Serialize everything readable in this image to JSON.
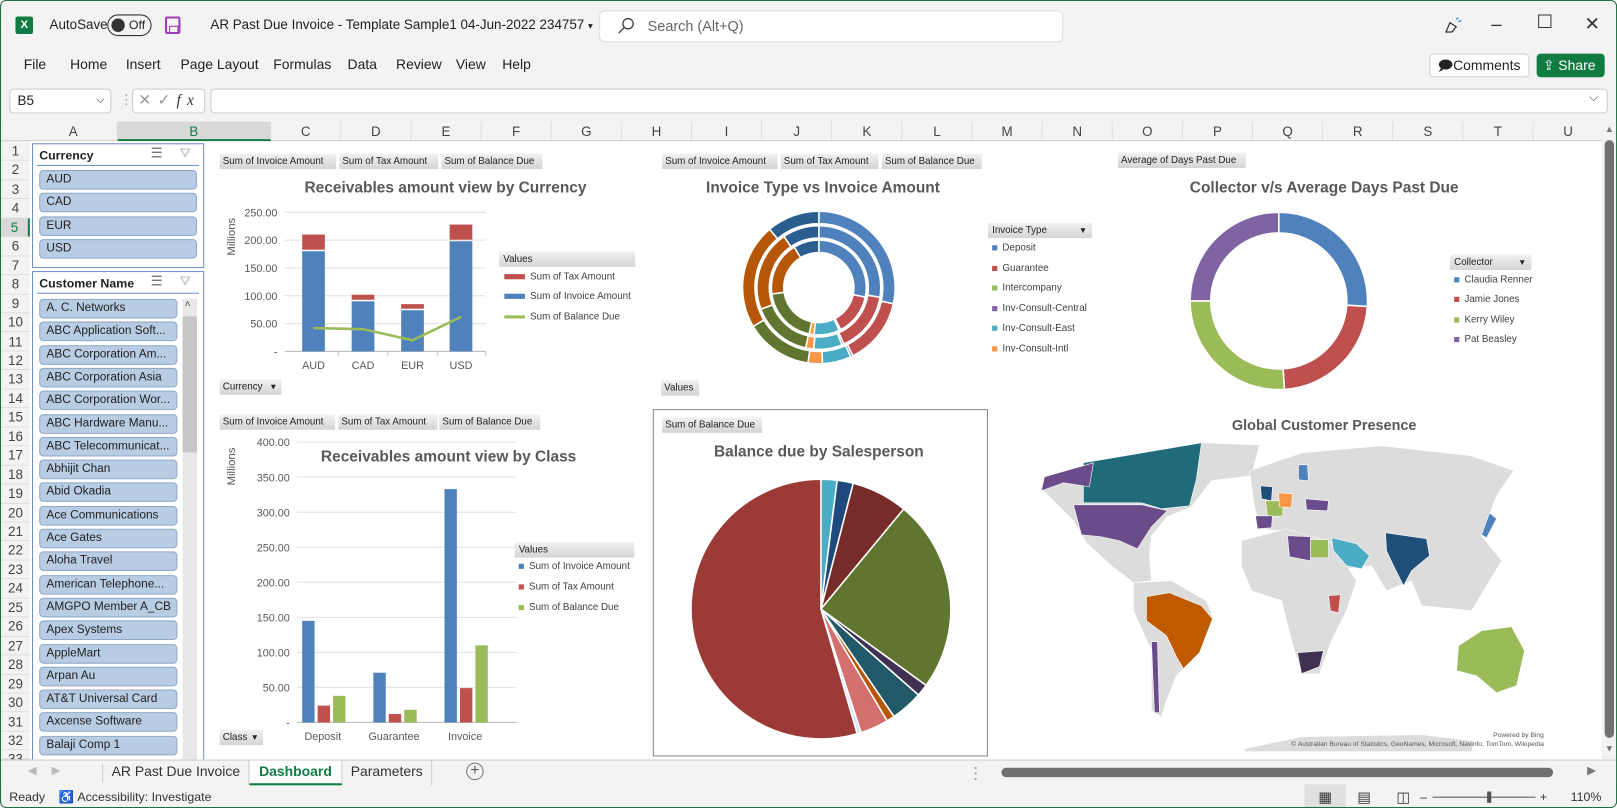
{
  "window": {
    "app_icon": "excel-icon",
    "autosave_label": "AutoSave",
    "autosave_state": "Off",
    "title": "AR Past Due Invoice - Template Sample1 04-Jun-2022 234757",
    "search_placeholder": "Search (Alt+Q)"
  },
  "menu": [
    "File",
    "Home",
    "Insert",
    "Page Layout",
    "Formulas",
    "Data",
    "Review",
    "View",
    "Help"
  ],
  "actions": {
    "comments": "Comments",
    "share": "Share"
  },
  "formula_bar": {
    "name_box": "B5",
    "formula": ""
  },
  "columns": [
    "A",
    "B",
    "C",
    "D",
    "E",
    "F",
    "G",
    "H",
    "I",
    "J",
    "K",
    "L",
    "M",
    "N",
    "O",
    "P",
    "Q",
    "R",
    "S",
    "T",
    "U"
  ],
  "rows": [
    "1",
    "2",
    "3",
    "4",
    "5",
    "6",
    "7",
    "8",
    "9",
    "10",
    "11",
    "12",
    "13",
    "14",
    "15",
    "16",
    "17",
    "18",
    "19",
    "20",
    "21",
    "22",
    "23",
    "24",
    "25",
    "26",
    "27",
    "28",
    "29",
    "30",
    "31",
    "32",
    "33"
  ],
  "selected_cell": "B5",
  "slicers": {
    "currency": {
      "title": "Currency",
      "items": [
        "AUD",
        "CAD",
        "EUR",
        "USD"
      ]
    },
    "customer": {
      "title": "Customer Name",
      "items": [
        "A. C. Networks",
        "ABC Application Soft...",
        "ABC Corporation Am...",
        "ABC Corporation Asia",
        "ABC Corporation Wor...",
        "ABC Hardware Manu...",
        "ABC Telecommunicat...",
        "Abhijit Chan",
        "Abid Okadia",
        "Ace Communications",
        "Ace Gates",
        "Aloha Travel",
        "American Telephone...",
        "AMGPO Member A_CB",
        "Apex Systems",
        "AppleMart",
        "Arpan Au",
        "AT&T Universal Card",
        "Axcense Software",
        "Balaji Comp 1"
      ]
    }
  },
  "chart_data": [
    {
      "type": "bar",
      "stacked": true,
      "title": "Receivables amount view by Currency",
      "field_buttons": [
        "Sum of Invoice Amount",
        "Sum of Tax Amount",
        "Sum of Balance Due"
      ],
      "axis_button": "Currency",
      "ylabel": "Millions",
      "ylim": [
        0,
        250
      ],
      "yticks": [
        {
          "value": 0,
          "label": "-"
        },
        {
          "value": 50,
          "label": "50.00"
        },
        {
          "value": 100,
          "label": "100.00"
        },
        {
          "value": 150,
          "label": "150.00"
        },
        {
          "value": 200,
          "label": "200.00"
        },
        {
          "value": 250,
          "label": "250.00"
        }
      ],
      "grid": true,
      "categories": [
        "AUD",
        "CAD",
        "EUR",
        "USD"
      ],
      "legend_title": "Values",
      "legend_position": "right",
      "series": [
        {
          "name": "Sum of Tax Amount",
          "kind": "bar",
          "color": "#c0504d",
          "values": [
            30,
            12,
            11,
            30
          ]
        },
        {
          "name": "Sum of Invoice Amount",
          "kind": "bar",
          "color": "#4f81bd",
          "values": [
            180,
            90,
            74,
            198
          ]
        },
        {
          "name": "Sum of Balance Due",
          "kind": "line",
          "color": "#9bbb59",
          "values": [
            42,
            40,
            20,
            62
          ]
        }
      ]
    },
    {
      "type": "bar",
      "title": "Receivables amount view by Class",
      "field_buttons": [
        "Sum of Invoice Amount",
        "Sum of Tax Amount",
        "Sum of Balance Due"
      ],
      "axis_button": "Class",
      "ylabel": "Millions",
      "ylim": [
        0,
        400
      ],
      "yticks": [
        {
          "value": 0,
          "label": "-"
        },
        {
          "value": 50,
          "label": "50.00"
        },
        {
          "value": 100,
          "label": "100.00"
        },
        {
          "value": 150,
          "label": "150.00"
        },
        {
          "value": 200,
          "label": "200.00"
        },
        {
          "value": 250,
          "label": "250.00"
        },
        {
          "value": 300,
          "label": "300.00"
        },
        {
          "value": 350,
          "label": "350.00"
        },
        {
          "value": 400,
          "label": "400.00"
        }
      ],
      "grid": true,
      "categories": [
        "Deposit",
        "Guarantee",
        "Invoice"
      ],
      "legend_title": "Values",
      "legend_position": "right",
      "series": [
        {
          "name": "Sum of Invoice Amount",
          "color": "#4f81bd",
          "values": [
            145,
            71,
            333
          ]
        },
        {
          "name": "Sum of Tax Amount",
          "color": "#c0504d",
          "values": [
            24,
            12,
            49
          ]
        },
        {
          "name": "Sum of Balance Due",
          "color": "#9bbb59",
          "values": [
            38,
            18,
            110
          ]
        }
      ]
    },
    {
      "type": "pie",
      "variant": "multi-ring-doughnut",
      "title": "Invoice Type vs Invoice Amount",
      "field_buttons": [
        "Sum of Invoice Amount",
        "Sum of Tax Amount",
        "Sum of Balance Due"
      ],
      "axis_button": "Values",
      "legend_title": "Invoice Type",
      "legend_position": "right",
      "legend": [
        {
          "name": "Deposit",
          "color": "#4f81bd"
        },
        {
          "name": "Guarantee",
          "color": "#c0504d"
        },
        {
          "name": "Intercompany",
          "color": "#9bbb59"
        },
        {
          "name": "Inv-Consult-Central",
          "color": "#8064a2"
        },
        {
          "name": "Inv-Consult-East",
          "color": "#4bacc6"
        },
        {
          "name": "Inv-Consult-Intl",
          "color": "#f79646"
        }
      ],
      "segment_colors": [
        "#4f81bd",
        "#c0504d",
        "#8064a2",
        "#4bacc6",
        "#f79646",
        "#5f7530",
        "#b65708",
        "#2c5d8f"
      ],
      "rings": [
        {
          "values": [
            26,
            13,
            0.5,
            8,
            1.5,
            18,
            17,
            8
          ]
        },
        {
          "values": [
            26,
            15,
            0.5,
            7,
            2,
            15,
            20,
            9
          ]
        },
        {
          "values": [
            28,
            14,
            0.5,
            6,
            3,
            14,
            22,
            11
          ]
        }
      ]
    },
    {
      "type": "pie",
      "variant": "doughnut",
      "title": "Collector v/s Average Days Past Due",
      "field_buttons": [
        "Average of Days Past Due"
      ],
      "legend_title": "Collector",
      "legend_position": "right",
      "categories": [
        "Claudia Renner",
        "Jamie Jones",
        "Kerry Wiley",
        "Pat Beasley"
      ],
      "colors": [
        "#4f81bd",
        "#c0504d",
        "#9bbb59",
        "#8064a2"
      ],
      "values": [
        26,
        23,
        26,
        25
      ]
    },
    {
      "type": "pie",
      "title": "Balance due by Salesperson",
      "field_buttons": [
        "Sum of Balance Due"
      ],
      "colors": [
        "#4bacc6",
        "#1f497d",
        "#772c2a",
        "#5f7530",
        "#403152",
        "#215968",
        "#b65708",
        "#d46f6f",
        "#dce6f2",
        "#9c3a38"
      ],
      "values": [
        2,
        2,
        7,
        24,
        1.5,
        4,
        1,
        3.5,
        0.5,
        54.5
      ]
    },
    {
      "type": "map",
      "title": "Global Customer  Presence",
      "powered_by": "Powered by Bing",
      "attribution": "© Australian Bureau of Statistics, GeoNames, Microsoft, Navinfo, TomTom, Wikipedia"
    }
  ],
  "sheet_tabs": [
    "AR Past Due Invoice",
    "Dashboard",
    "Parameters"
  ],
  "active_tab": "Dashboard",
  "status": {
    "ready": "Ready",
    "accessibility": "Accessibility: Investigate",
    "zoom": "110%",
    "zoom_level_percent": 110
  }
}
